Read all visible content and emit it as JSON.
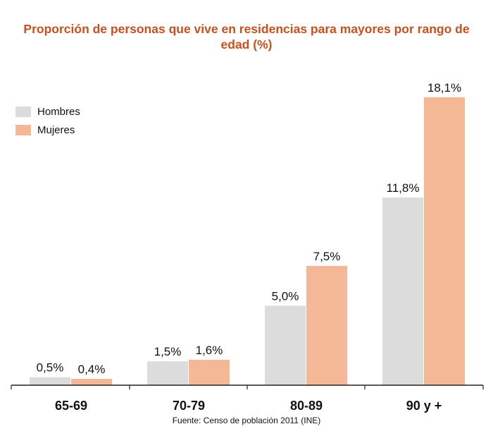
{
  "chart_data": {
    "type": "bar",
    "title": "Proporción de personas que vive en residencias para mayores por rango de edad (%)",
    "categories": [
      "65-69",
      "70-79",
      "80-89",
      "90 y +"
    ],
    "series": [
      {
        "name": "Hombres",
        "color": "#dcdcdc",
        "values": [
          0.5,
          1.5,
          5.0,
          11.8
        ],
        "labels": [
          "0,5%",
          "1,5%",
          "5,0%",
          "11,8%"
        ]
      },
      {
        "name": "Mujeres",
        "color": "#f4b896",
        "values": [
          0.4,
          1.6,
          7.5,
          18.1
        ],
        "labels": [
          "0,4%",
          "1,6%",
          "7,5%",
          "18,1%"
        ]
      }
    ],
    "ylim": [
      0,
      20
    ],
    "grid": false,
    "legend_position": "top-left",
    "source": "Fuente: Censo de población 2011 (INE)"
  }
}
